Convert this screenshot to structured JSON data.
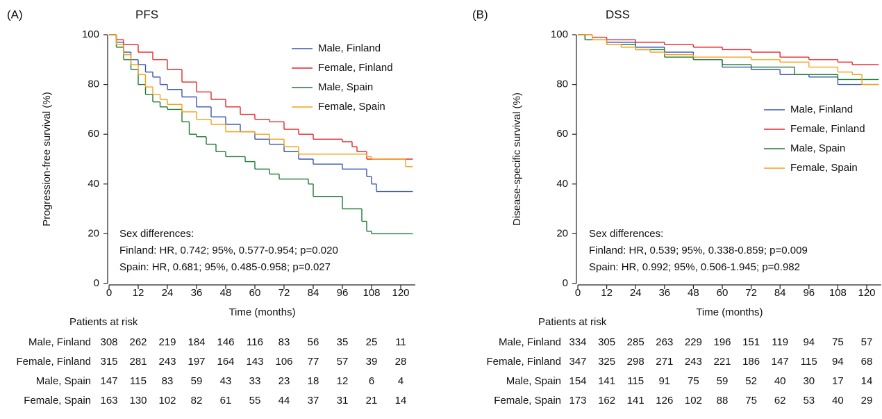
{
  "chart_data": [
    {
      "type": "step",
      "panel": "(A)",
      "title": "PFS",
      "x_label": "Time (months)",
      "y_label": "Progression-free survival (%)",
      "xlim": [
        0,
        126
      ],
      "xticks": [
        0,
        12,
        24,
        36,
        48,
        60,
        72,
        84,
        96,
        108,
        120
      ],
      "ylim": [
        0,
        100
      ],
      "yticks": [
        0,
        20,
        40,
        60,
        80,
        100
      ],
      "legend": "upper right",
      "series": [
        {
          "name": "Male, Finland",
          "color": "#3a55b4",
          "x": [
            0,
            3,
            6,
            9,
            12,
            15,
            18,
            21,
            24,
            30,
            36,
            42,
            48,
            54,
            60,
            66,
            72,
            78,
            84,
            96,
            106,
            108,
            110,
            125
          ],
          "values": [
            100,
            97,
            93,
            90,
            88,
            85,
            83,
            80,
            78,
            75,
            71,
            67,
            64,
            61,
            58,
            56,
            53,
            50,
            48,
            46,
            43,
            40,
            37,
            37
          ]
        },
        {
          "name": "Female, Finland",
          "color": "#e8262a",
          "x": [
            0,
            3,
            6,
            12,
            18,
            24,
            30,
            36,
            42,
            48,
            54,
            60,
            66,
            72,
            78,
            84,
            96,
            100,
            102,
            106,
            125
          ],
          "values": [
            100,
            98,
            96,
            93,
            90,
            86,
            81,
            77,
            74,
            71,
            68,
            66,
            65,
            62,
            60,
            58,
            57,
            55,
            53,
            50,
            50
          ]
        },
        {
          "name": "Male, Spain",
          "color": "#1e7a35",
          "x": [
            0,
            3,
            6,
            9,
            12,
            15,
            18,
            21,
            24,
            30,
            33,
            36,
            40,
            44,
            48,
            56,
            60,
            66,
            70,
            82,
            84,
            96,
            104,
            106,
            108,
            125
          ],
          "values": [
            100,
            95,
            90,
            86,
            80,
            76,
            73,
            71,
            70,
            65,
            60,
            59,
            56,
            53,
            51,
            49,
            46,
            44,
            42,
            40,
            35,
            30,
            25,
            21,
            20,
            20
          ]
        },
        {
          "name": "Female, Spain",
          "color": "#f5a016",
          "x": [
            0,
            3,
            6,
            9,
            12,
            15,
            18,
            21,
            24,
            30,
            36,
            42,
            48,
            60,
            66,
            72,
            78,
            106,
            108,
            122,
            125
          ],
          "values": [
            100,
            96,
            92,
            88,
            84,
            79,
            76,
            74,
            72,
            69,
            66,
            64,
            61,
            60,
            58,
            55,
            52,
            51,
            50,
            47,
            47
          ]
        }
      ],
      "annotations": [
        "Sex differences:",
        "Finland: HR, 0.742; 95%, 0.577-0.954; p=0.020",
        "Spain: HR, 0.681; 95%, 0.485-0.958; p=0.027"
      ],
      "risk_table": {
        "title": "Patients at risk",
        "rows": [
          {
            "name": "Male, Finland",
            "values": [
              308,
              262,
              219,
              184,
              146,
              116,
              83,
              56,
              35,
              25,
              11
            ]
          },
          {
            "name": "Female, Finland",
            "values": [
              315,
              281,
              243,
              197,
              164,
              143,
              106,
              77,
              57,
              39,
              28
            ]
          },
          {
            "name": "Male, Spain",
            "values": [
              147,
              115,
              83,
              59,
              43,
              33,
              23,
              18,
              12,
              6,
              4
            ]
          },
          {
            "name": "Female, Spain",
            "values": [
              163,
              130,
              102,
              82,
              61,
              55,
              44,
              37,
              31,
              21,
              14
            ]
          }
        ]
      }
    },
    {
      "type": "step",
      "panel": "(B)",
      "title": "DSS",
      "x_label": "Time (months)",
      "y_label": "Disease-specific survival (%)",
      "xlim": [
        0,
        126
      ],
      "xticks": [
        0,
        12,
        24,
        36,
        48,
        60,
        72,
        84,
        96,
        108,
        120
      ],
      "ylim": [
        0,
        100
      ],
      "yticks": [
        0,
        20,
        40,
        60,
        80,
        100
      ],
      "legend": "center right",
      "series": [
        {
          "name": "Male, Finland",
          "color": "#3a55b4",
          "x": [
            0,
            3,
            12,
            24,
            36,
            48,
            60,
            72,
            84,
            96,
            108,
            125
          ],
          "values": [
            100,
            98,
            97,
            95,
            93,
            90,
            87,
            86,
            84,
            83,
            80,
            80
          ]
        },
        {
          "name": "Female, Finland",
          "color": "#e8262a",
          "x": [
            0,
            6,
            12,
            24,
            36,
            48,
            60,
            72,
            84,
            96,
            108,
            114,
            125
          ],
          "values": [
            100,
            99,
            98,
            97,
            96,
            95,
            94,
            93,
            91,
            90,
            89,
            88,
            88
          ]
        },
        {
          "name": "Male, Spain",
          "color": "#1e7a35",
          "x": [
            0,
            3,
            12,
            24,
            36,
            48,
            60,
            72,
            90,
            108,
            125
          ],
          "values": [
            100,
            98,
            96,
            94,
            91,
            90,
            88,
            87,
            84,
            82,
            82
          ]
        },
        {
          "name": "Female, Spain",
          "color": "#f5a016",
          "x": [
            0,
            6,
            12,
            18,
            24,
            30,
            36,
            48,
            72,
            84,
            96,
            108,
            114,
            118,
            125
          ],
          "values": [
            100,
            98,
            96,
            95,
            94,
            93,
            92,
            91,
            90,
            89,
            87,
            85,
            84,
            80,
            80
          ]
        }
      ],
      "annotations": [
        "Sex differences:",
        "Finland: HR, 0.539; 95%, 0.338-0.859; p=0.009",
        "Spain: HR, 0.992; 95%, 0.506-1.945; p=0.982"
      ],
      "risk_table": {
        "title": "Patients at risk",
        "rows": [
          {
            "name": "Male, Finland",
            "values": [
              334,
              305,
              285,
              263,
              229,
              196,
              151,
              119,
              94,
              75,
              57
            ]
          },
          {
            "name": "Female, Finland",
            "values": [
              347,
              325,
              298,
              271,
              243,
              221,
              186,
              147,
              115,
              94,
              68
            ]
          },
          {
            "name": "Male, Spain",
            "values": [
              154,
              141,
              115,
              91,
              75,
              59,
              52,
              40,
              30,
              17,
              14
            ]
          },
          {
            "name": "Female, Spain",
            "values": [
              173,
              162,
              141,
              126,
              102,
              88,
              75,
              62,
              53,
              40,
              29
            ]
          }
        ]
      }
    }
  ]
}
